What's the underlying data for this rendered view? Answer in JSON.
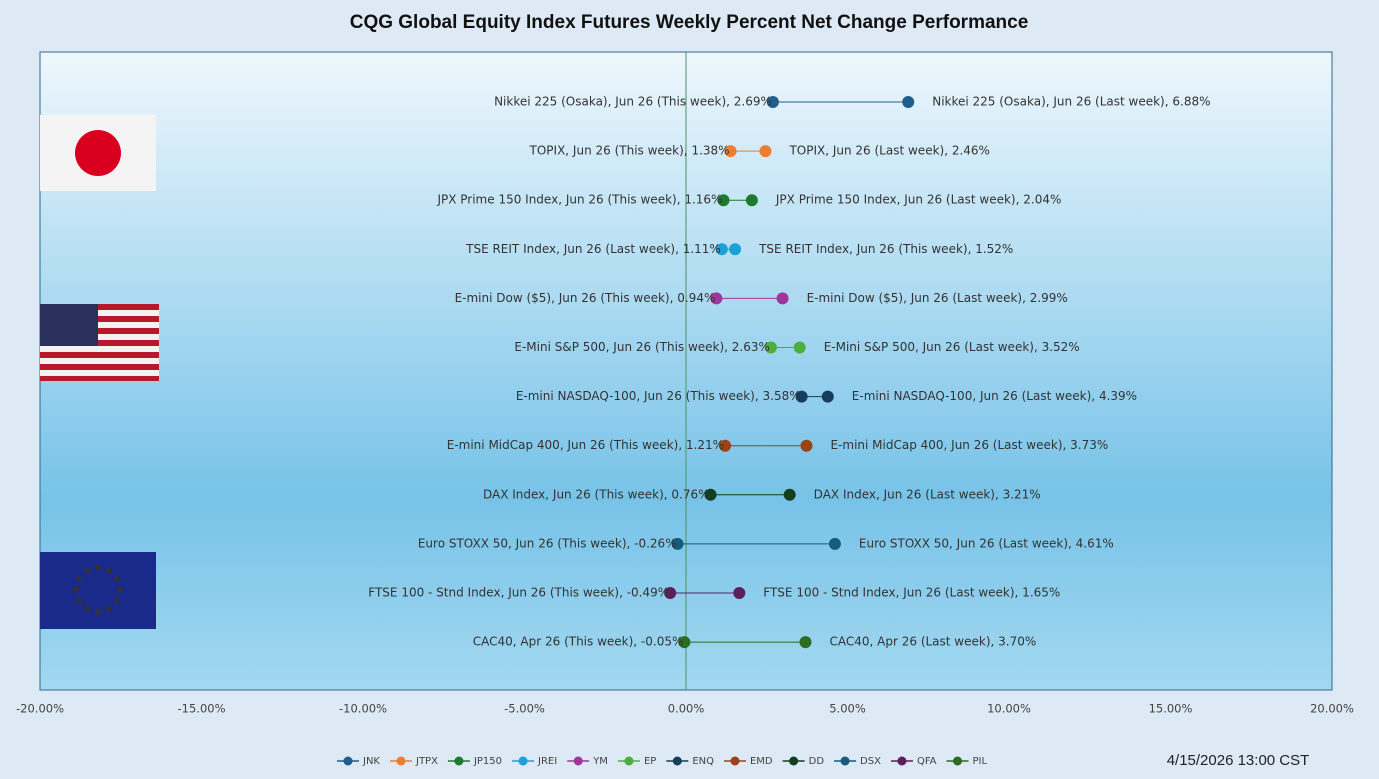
{
  "chart_data": {
    "type": "dumbbell",
    "title": "CQG Global Equity Index Futures Weekly Percent Net Change Performance",
    "xlim": [
      -20,
      20
    ],
    "xticks": [
      {
        "value": -20,
        "label": "-20.00%"
      },
      {
        "value": -15,
        "label": "-15.00%"
      },
      {
        "value": -10,
        "label": "-10.00%"
      },
      {
        "value": -5,
        "label": "-5.00%"
      },
      {
        "value": 0,
        "label": "0.00%"
      },
      {
        "value": 5,
        "label": "5.00%"
      },
      {
        "value": 10,
        "label": "10.00%"
      },
      {
        "value": 15,
        "label": "15.00%"
      },
      {
        "value": 20,
        "label": "20.00%"
      }
    ],
    "series": [
      {
        "name": "JNK",
        "color": "#1f5f8b",
        "values": [
          2.69,
          6.88
        ],
        "value_labels": [
          "Nikkei 225 (Osaka), Jun 26 (This week), 2.69%",
          "Nikkei 225 (Osaka), Jun 26 (Last week), 6.88%"
        ]
      },
      {
        "name": "JTPX",
        "color": "#ed7d31",
        "values": [
          1.38,
          2.46
        ],
        "value_labels": [
          "TOPIX, Jun 26 (This week), 1.38%",
          "TOPIX, Jun 26 (Last week), 2.46%"
        ]
      },
      {
        "name": "JP150",
        "color": "#1e7a2e",
        "values": [
          1.16,
          2.04
        ],
        "value_labels": [
          "JPX Prime 150 Index, Jun 26 (This week), 1.16%",
          "JPX Prime 150 Index, Jun 26 (Last week), 2.04%"
        ]
      },
      {
        "name": "JREI",
        "color": "#1ba1d6",
        "values": [
          1.11,
          1.52
        ],
        "value_labels": [
          "TSE REIT Index, Jun 26 (Last week), 1.11%",
          "TSE REIT Index, Jun 26 (This week), 1.52%"
        ]
      },
      {
        "name": "YM",
        "color": "#a0369b",
        "values": [
          0.94,
          2.99
        ],
        "value_labels": [
          "E-mini Dow ($5), Jun 26 (This week), 0.94%",
          "E-mini Dow ($5), Jun 26 (Last week), 2.99%"
        ]
      },
      {
        "name": "EP",
        "color": "#4caf3a",
        "values": [
          2.63,
          3.52
        ],
        "value_labels": [
          "E-Mini S&P 500, Jun 26 (This week), 2.63%",
          "E-Mini S&P 500, Jun 26 (Last week), 3.52%"
        ]
      },
      {
        "name": "ENQ",
        "color": "#163d5c",
        "values": [
          3.58,
          4.39
        ],
        "value_labels": [
          "E-mini NASDAQ-100, Jun 26 (This week), 3.58%",
          "E-mini NASDAQ-100, Jun 26 (Last week), 4.39%"
        ]
      },
      {
        "name": "EMD",
        "color": "#9c4217",
        "values": [
          1.21,
          3.73
        ],
        "value_labels": [
          "E-mini MidCap 400, Jun 26 (This week), 1.21%",
          "E-mini MidCap 400, Jun 26 (Last week), 3.73%"
        ]
      },
      {
        "name": "DD",
        "color": "#123f1f",
        "values": [
          0.76,
          3.21
        ],
        "value_labels": [
          "DAX Index, Jun 26 (This week), 0.76%",
          "DAX Index, Jun 26 (Last week), 3.21%"
        ]
      },
      {
        "name": "DSX",
        "color": "#165c7c",
        "values": [
          -0.26,
          4.61
        ],
        "value_labels": [
          "Euro STOXX 50, Jun 26 (This week), -0.26%",
          "Euro STOXX 50, Jun 26 (Last week), 4.61%"
        ]
      },
      {
        "name": "QFA",
        "color": "#5c1f5c",
        "values": [
          -0.49,
          1.65
        ],
        "value_labels": [
          "FTSE 100 - Stnd Index, Jun 26 (This week), -0.49%",
          "FTSE 100 - Stnd Index, Jun 26 (Last week), 1.65%"
        ]
      },
      {
        "name": "PIL",
        "color": "#2e6b23",
        "values": [
          -0.05,
          3.7
        ],
        "value_labels": [
          "CAC40, Apr 26 (This week), -0.05%",
          "CAC40, Apr 26 (Last week), 3.70%"
        ]
      }
    ],
    "timestamp": "4/15/2026 13:00 CST"
  }
}
